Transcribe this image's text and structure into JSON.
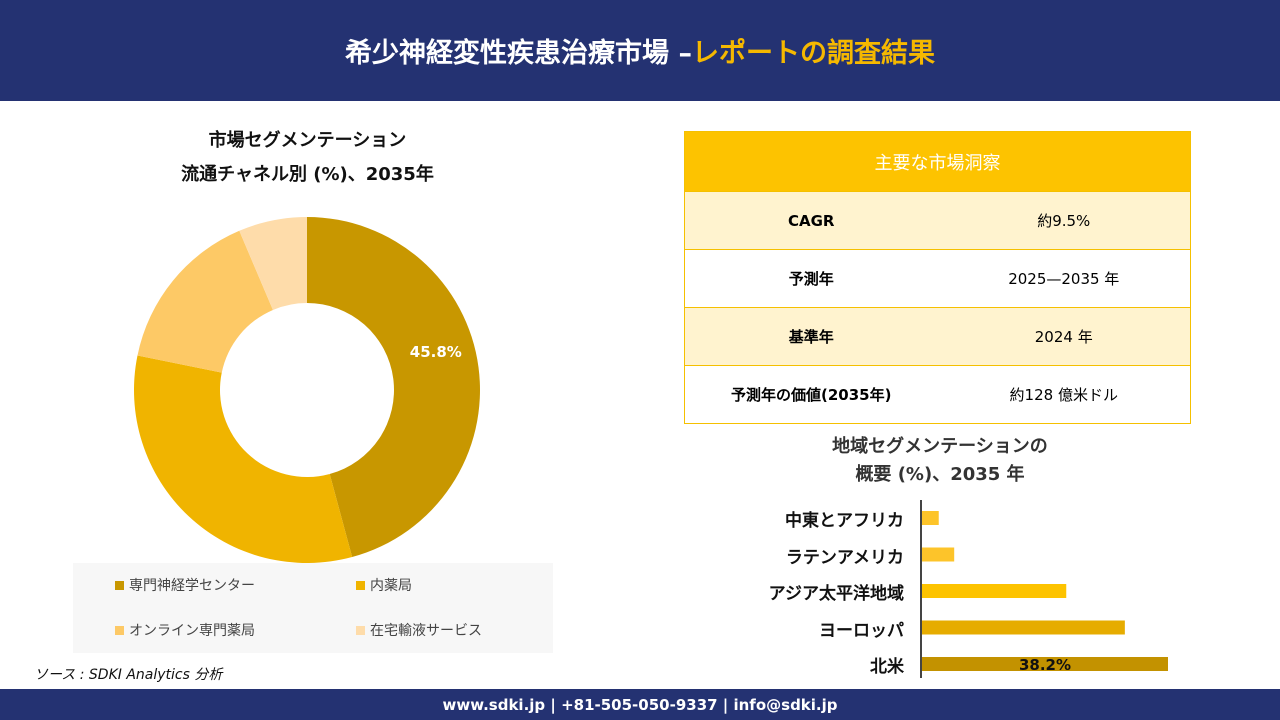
{
  "header": {
    "title_main": "希少神経変性疾患治療市場 –",
    "title_highlight": "レポートの調査結果"
  },
  "chart_data": [
    {
      "type": "pie",
      "title": "市場セグメンテーション",
      "subtitle": "流通チャネル別 (%)、2035年",
      "categories": [
        "専門神経学センター",
        "内薬局",
        "オンライン専門薬局",
        "在宅輸液サービス"
      ],
      "values": [
        45.8,
        32.4,
        15.4,
        6.4
      ],
      "colors": [
        "#c89700",
        "#f0b400",
        "#fdc966",
        "#fedcaa"
      ],
      "data_labels": [
        "45.8%"
      ]
    },
    {
      "type": "bar",
      "orientation": "horizontal",
      "title": "地域セグメンテーションの",
      "subtitle": "概要 (%)、2035 年",
      "categories": [
        "中東とアフリカ",
        "ラテンアメリカ",
        "アジア太平洋地域",
        "ヨーロッパ",
        "北米"
      ],
      "values": [
        2.6,
        5.0,
        22.4,
        31.5,
        38.2
      ],
      "colors": [
        "#fdc42a",
        "#fdc42a",
        "#fdc300",
        "#e6ac00",
        "#c39200"
      ],
      "data_labels": {
        "北米": "38.2%"
      }
    }
  ],
  "insights": {
    "title": "主要な市場洞察",
    "rows": [
      {
        "k": "CAGR",
        "v": "約9.5%"
      },
      {
        "k": "予測年",
        "v": "2025—2035 年"
      },
      {
        "k": "基準年",
        "v": "2024 年"
      },
      {
        "k": "予測年の価値(2035年)",
        "v": "約128 億米ドル"
      }
    ]
  },
  "source": "ソース : SDKI Analytics 分析",
  "footer": "www.sdki.jp | +81-505-050-9337 | info@sdki.jp"
}
